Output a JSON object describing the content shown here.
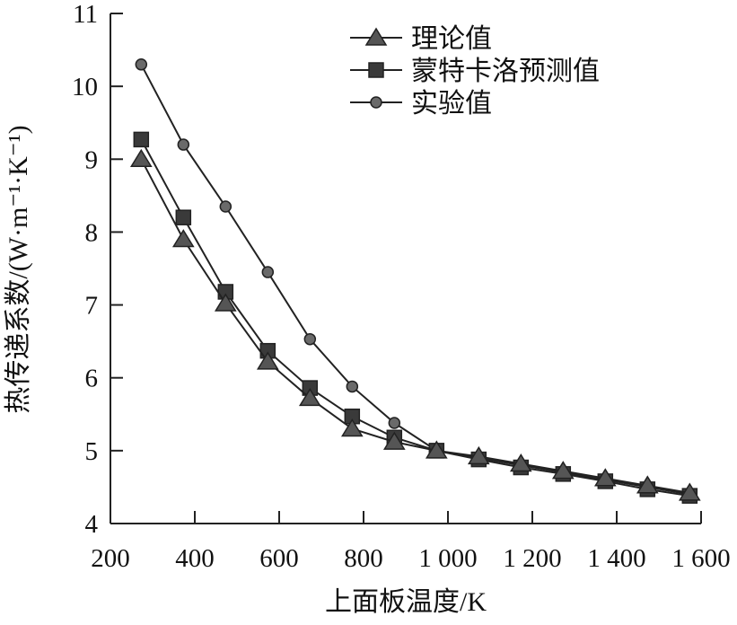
{
  "chart_data": {
    "type": "line",
    "title": "",
    "xlabel": "上面板温度/K",
    "ylabel": "热传递系数/(W·m⁻¹·K⁻¹)",
    "xlim": [
      200,
      1600
    ],
    "ylim": [
      4,
      11
    ],
    "xticks": [
      "200",
      "400",
      "600",
      "800",
      "1 000",
      "1 200",
      "1 400",
      "1 600"
    ],
    "xtick_values": [
      200,
      400,
      600,
      800,
      1000,
      1200,
      1400,
      1600
    ],
    "yticks": [
      "4",
      "5",
      "6",
      "7",
      "8",
      "9",
      "10",
      "11"
    ],
    "ytick_values": [
      4,
      5,
      6,
      7,
      8,
      9,
      10,
      11
    ],
    "grid": false,
    "legend_position": "top-right",
    "x": [
      273,
      373,
      473,
      573,
      673,
      773,
      873,
      973,
      1073,
      1173,
      1273,
      1373,
      1473,
      1573
    ],
    "series": [
      {
        "name": "理论值",
        "marker": "triangle",
        "color": "#555555",
        "values": [
          9.0,
          7.9,
          7.02,
          6.22,
          5.72,
          5.3,
          5.12,
          5.0,
          4.92,
          4.82,
          4.72,
          4.62,
          4.52,
          4.42
        ]
      },
      {
        "name": "蒙特卡洛预测值",
        "marker": "square",
        "color": "#3a3a3a",
        "values": [
          9.27,
          8.2,
          7.18,
          6.37,
          5.86,
          5.47,
          5.18,
          5.0,
          4.88,
          4.77,
          4.68,
          4.58,
          4.47,
          4.38
        ]
      },
      {
        "name": "实验值",
        "marker": "circle",
        "color": "#6a6a6a",
        "values": [
          10.3,
          9.2,
          8.35,
          7.45,
          6.53,
          5.88,
          5.38,
          5.0,
          4.9,
          4.8,
          4.7,
          4.6,
          4.5,
          4.4
        ]
      }
    ]
  }
}
